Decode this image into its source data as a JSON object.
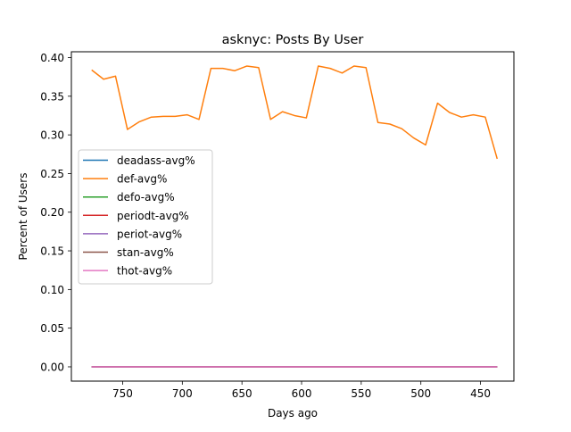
{
  "chart_data": {
    "type": "line",
    "title": "asknyc: Posts By User",
    "xlabel": "Days ago",
    "ylabel": "Percent of Users",
    "xlim": [
      793,
      422
    ],
    "ylim": [
      -0.0185,
      0.4075
    ],
    "x_inverted": true,
    "xticks": [
      750,
      700,
      650,
      600,
      550,
      500,
      450
    ],
    "xtick_labels": [
      "750",
      "700",
      "650",
      "600",
      "550",
      "500",
      "450"
    ],
    "yticks": [
      0.0,
      0.05,
      0.1,
      0.15,
      0.2,
      0.25,
      0.3,
      0.35,
      0.4
    ],
    "ytick_labels": [
      "0.00",
      "0.05",
      "0.10",
      "0.15",
      "0.20",
      "0.25",
      "0.30",
      "0.35",
      "0.40"
    ],
    "grid": false,
    "legend_position": "center-left",
    "x": [
      776,
      766,
      756,
      746,
      736,
      726,
      716,
      706,
      696,
      686,
      676,
      666,
      656,
      646,
      636,
      626,
      616,
      606,
      596,
      586,
      576,
      566,
      556,
      546,
      536,
      526,
      516,
      506,
      496,
      486,
      476,
      466,
      456,
      446,
      436
    ],
    "series": [
      {
        "name": "deadass-avg%",
        "color": "#1f77b4",
        "values": [
          0.0,
          0.0,
          0.0,
          0.0,
          0.0,
          0.0,
          0.0,
          0.0,
          0.0,
          0.0,
          0.0,
          0.0,
          0.0,
          0.0,
          0.0,
          0.0,
          0.0,
          0.0,
          0.0,
          0.0,
          0.0,
          0.0,
          0.0,
          0.0,
          0.0,
          0.0,
          0.0,
          0.0,
          0.0,
          0.0,
          0.0,
          0.0,
          0.0,
          0.0,
          0.0
        ]
      },
      {
        "name": "def-avg%",
        "color": "#ff7f0e",
        "values": [
          0.384,
          0.372,
          0.376,
          0.307,
          0.317,
          0.323,
          0.324,
          0.324,
          0.326,
          0.32,
          0.386,
          0.386,
          0.383,
          0.389,
          0.387,
          0.32,
          0.33,
          0.325,
          0.322,
          0.389,
          0.386,
          0.38,
          0.389,
          0.387,
          0.316,
          0.314,
          0.308,
          0.296,
          0.287,
          0.341,
          0.329,
          0.323,
          0.326,
          0.323,
          0.269
        ]
      },
      {
        "name": "defo-avg%",
        "color": "#2ca02c",
        "values": [
          0.0,
          0.0,
          0.0,
          0.0,
          0.0,
          0.0,
          0.0,
          0.0,
          0.0,
          0.0,
          0.0,
          0.0,
          0.0,
          0.0,
          0.0,
          0.0,
          0.0,
          0.0,
          0.0,
          0.0,
          0.0,
          0.0,
          0.0,
          0.0,
          0.0,
          0.0,
          0.0,
          0.0,
          0.0,
          0.0,
          0.0,
          0.0,
          0.0,
          0.0,
          0.0
        ]
      },
      {
        "name": "periodt-avg%",
        "color": "#d62728",
        "values": [
          0.0,
          0.0,
          0.0,
          0.0,
          0.0,
          0.0,
          0.0,
          0.0,
          0.0,
          0.0,
          0.0,
          0.0,
          0.0,
          0.0,
          0.0,
          0.0,
          0.0,
          0.0,
          0.0,
          0.0,
          0.0,
          0.0,
          0.0,
          0.0,
          0.0,
          0.0,
          0.0,
          0.0,
          0.0,
          0.0,
          0.0,
          0.0,
          0.0,
          0.0,
          0.0
        ]
      },
      {
        "name": "periot-avg%",
        "color": "#9467bd",
        "values": [
          0.0,
          0.0,
          0.0,
          0.0,
          0.0,
          0.0,
          0.0,
          0.0,
          0.0,
          0.0,
          0.0,
          0.0,
          0.0,
          0.0,
          0.0,
          0.0,
          0.0,
          0.0,
          0.0,
          0.0,
          0.0,
          0.0,
          0.0,
          0.0,
          0.0,
          0.0,
          0.0,
          0.0,
          0.0,
          0.0,
          0.0,
          0.0,
          0.0,
          0.0,
          0.0
        ]
      },
      {
        "name": "stan-avg%",
        "color": "#8c564b",
        "values": [
          0.0,
          0.0,
          0.0,
          0.0,
          0.0,
          0.0,
          0.0,
          0.0,
          0.0,
          0.0,
          0.0,
          0.0,
          0.0,
          0.0,
          0.0,
          0.0,
          0.0,
          0.0,
          0.0,
          0.0,
          0.0,
          0.0,
          0.0,
          0.0,
          0.0,
          0.0,
          0.0,
          0.0,
          0.0,
          0.0,
          0.0,
          0.0,
          0.0,
          0.0,
          0.0
        ]
      },
      {
        "name": "thot-avg%",
        "color": "#e377c2",
        "values": [
          0.0,
          0.0,
          0.0,
          0.0,
          0.0,
          0.0,
          0.0,
          0.0,
          0.0,
          0.0,
          0.0,
          0.0,
          0.0,
          0.0,
          0.0,
          0.0,
          0.0,
          0.0,
          0.0,
          0.0,
          0.0,
          0.0,
          0.0,
          0.0,
          0.0,
          0.0,
          0.0,
          0.0,
          0.0,
          0.0,
          0.0,
          0.0,
          0.0,
          0.0,
          0.0
        ]
      }
    ]
  }
}
